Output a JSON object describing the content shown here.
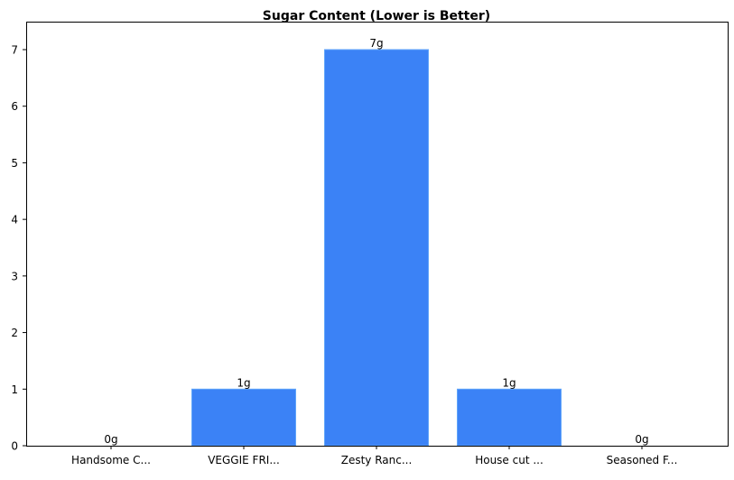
{
  "chart_data": {
    "type": "bar",
    "title": "Sugar Content (Lower is Better)",
    "xlabel": "",
    "ylabel": "",
    "categories": [
      "Handsome C...",
      "VEGGIE FRI...",
      "Zesty Ranc...",
      "House cut ...",
      "Seasoned F..."
    ],
    "values": [
      0,
      1,
      7,
      1,
      0
    ],
    "value_labels": [
      "0g",
      "1g",
      "7g",
      "1g",
      "0g"
    ],
    "ylim": [
      0,
      7.35
    ],
    "yticks": [
      "0",
      "1",
      "2",
      "3",
      "4",
      "5",
      "6",
      "7"
    ],
    "grid": false,
    "legend": null,
    "bar_color": "#3b82f6"
  }
}
